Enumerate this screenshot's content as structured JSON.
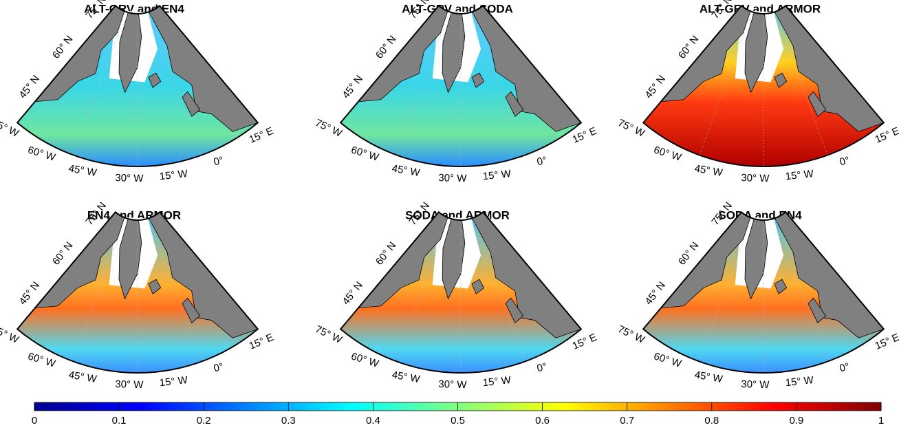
{
  "figure": {
    "panels": [
      {
        "title": "ALT-GRV and EN4"
      },
      {
        "title": "ALT-GRV and SODA"
      },
      {
        "title": "ALT-GRV and ARMOR"
      },
      {
        "title": "EN4 and ARMOR"
      },
      {
        "title": "SODA and ARMOR"
      },
      {
        "title": "SODA and EN4"
      }
    ],
    "lat_labels": [
      "75° N",
      "60° N",
      "45° N"
    ],
    "lon_labels": [
      "75° W",
      "60° W",
      "45° W",
      "30° W",
      "15° W",
      "0°",
      "15° E"
    ]
  },
  "colorbar": {
    "clim": [
      0,
      1
    ],
    "ticks": [
      0,
      0.1,
      0.2,
      0.3,
      0.4,
      0.5,
      0.6,
      0.7,
      0.8,
      0.9,
      1
    ],
    "colormap": [
      "#00008f",
      "#0000ff",
      "#0080ff",
      "#00ffff",
      "#80ff80",
      "#ffff00",
      "#ff8000",
      "#ff0000",
      "#800000"
    ]
  }
}
